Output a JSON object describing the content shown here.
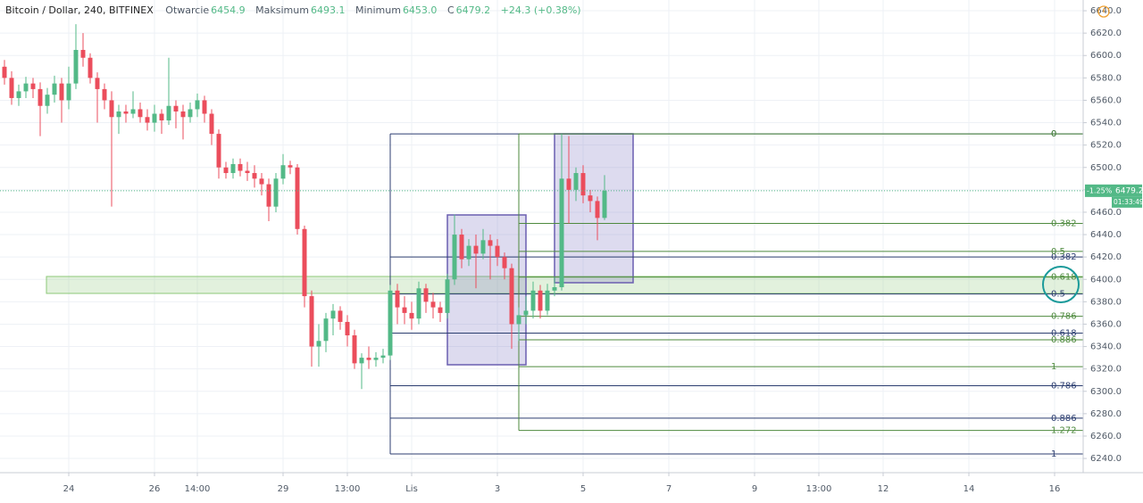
{
  "chart_data": {
    "type": "candlestick",
    "title": "Bitcoin / Dollar, 240, BITFINEX",
    "legend": {
      "open_label": "Otwarcie",
      "high_label": "Maksimum",
      "low_label": "Minimum",
      "low_value_label": "6453.0",
      "close_label": "C",
      "change": "+24.3 (+0.38%)"
    },
    "series": {
      "open": [
        6590,
        6580,
        6562,
        6568,
        6575,
        6570,
        6555,
        6565,
        6575,
        6560,
        6575,
        6605,
        6598,
        6580,
        6570,
        6560,
        6545,
        6550,
        6548,
        6552,
        6545,
        6540,
        6548,
        6542,
        6555,
        6550,
        6545,
        6552,
        6560,
        6548,
        6530,
        6500,
        6495,
        6503,
        6497,
        6495,
        6490,
        6485,
        6465,
        6490,
        6502,
        6500,
        6445,
        6385,
        6340,
        6345,
        6365,
        6372,
        6362,
        6350,
        6325,
        6330,
        6328,
        6330,
        6332,
        6390,
        6375,
        6370,
        6365,
        6392,
        6380,
        6375,
        6370,
        6400,
        6440,
        6418,
        6430,
        6423,
        6435,
        6430,
        6420,
        6410,
        6360,
        6368,
        6372,
        6390,
        6372,
        6390,
        6393,
        6490,
        6480,
        6495,
        6475,
        6470,
        6454.9
      ],
      "high": [
        6596,
        6586,
        6574,
        6581,
        6580,
        6576,
        6571,
        6582,
        6580,
        6590,
        6628,
        6620,
        6602,
        6585,
        6575,
        6568,
        6556,
        6556,
        6568,
        6558,
        6552,
        6556,
        6552,
        6598,
        6560,
        6556,
        6558,
        6566,
        6564,
        6552,
        6534,
        6505,
        6508,
        6508,
        6505,
        6502,
        6495,
        6490,
        6495,
        6512,
        6506,
        6503,
        6448,
        6390,
        6360,
        6370,
        6378,
        6376,
        6368,
        6355,
        6334,
        6340,
        6335,
        6338,
        6395,
        6396,
        6385,
        6380,
        6398,
        6396,
        6388,
        6380,
        6405,
        6458,
        6445,
        6436,
        6440,
        6445,
        6440,
        6436,
        6424,
        6414,
        6375,
        6385,
        6398,
        6395,
        6396,
        6402,
        6530,
        6528,
        6500,
        6502,
        6480,
        6474,
        6493.1
      ],
      "low": [
        6574,
        6556,
        6555,
        6562,
        6562,
        6528,
        6548,
        6558,
        6540,
        6552,
        6570,
        6590,
        6575,
        6540,
        6552,
        6465,
        6530,
        6540,
        6544,
        6540,
        6533,
        6532,
        6530,
        6538,
        6535,
        6525,
        6540,
        6545,
        6540,
        6520,
        6490,
        6490,
        6490,
        6492,
        6488,
        6482,
        6475,
        6452,
        6460,
        6485,
        6494,
        6440,
        6375,
        6322,
        6322,
        6335,
        6350,
        6355,
        6340,
        6320,
        6302,
        6320,
        6322,
        6325,
        6328,
        6360,
        6360,
        6355,
        6360,
        6370,
        6365,
        6362,
        6365,
        6395,
        6410,
        6412,
        6392,
        6418,
        6400,
        6412,
        6400,
        6338,
        6345,
        6360,
        6365,
        6365,
        6368,
        6385,
        6390,
        6450,
        6470,
        6468,
        6460,
        6435,
        6453.0
      ],
      "close": [
        6580,
        6562,
        6568,
        6575,
        6570,
        6555,
        6565,
        6575,
        6560,
        6575,
        6605,
        6598,
        6580,
        6570,
        6560,
        6545,
        6550,
        6548,
        6552,
        6545,
        6540,
        6548,
        6542,
        6555,
        6550,
        6545,
        6552,
        6560,
        6548,
        6530,
        6500,
        6495,
        6503,
        6497,
        6495,
        6490,
        6485,
        6465,
        6490,
        6502,
        6500,
        6445,
        6385,
        6340,
        6345,
        6365,
        6372,
        6362,
        6350,
        6325,
        6330,
        6328,
        6330,
        6332,
        6390,
        6375,
        6370,
        6365,
        6392,
        6380,
        6375,
        6370,
        6400,
        6440,
        6418,
        6430,
        6423,
        6435,
        6430,
        6420,
        6410,
        6360,
        6368,
        6372,
        6390,
        6372,
        6390,
        6393,
        6490,
        6480,
        6495,
        6475,
        6470,
        6454.9,
        6479.2
      ]
    },
    "up_color": "#53b987",
    "down_color": "#eb4d5c",
    "xlim": [
      -0.625,
      151
    ],
    "xticks": [
      {
        "value": 9,
        "label": "24"
      },
      {
        "value": 21,
        "label": "26"
      },
      {
        "value": 27,
        "label": "14:00"
      },
      {
        "value": 39,
        "label": "29"
      },
      {
        "value": 48,
        "label": "13:00"
      },
      {
        "value": 57,
        "label": "Lis"
      },
      {
        "value": 69,
        "label": "3"
      },
      {
        "value": 81,
        "label": "5"
      },
      {
        "value": 93,
        "label": "7"
      },
      {
        "value": 105,
        "label": "9"
      },
      {
        "value": 114,
        "label": "13:00"
      },
      {
        "value": 123,
        "label": "12"
      },
      {
        "value": 135,
        "label": "14"
      },
      {
        "value": 147,
        "label": "16"
      }
    ],
    "ylim": [
      6227.3,
      6649.6
    ],
    "yticks": [
      {
        "value": 6640,
        "label": "6640.0"
      },
      {
        "value": 6620,
        "label": "6620.0"
      },
      {
        "value": 6600,
        "label": "6600.0"
      },
      {
        "value": 6580,
        "label": "6580.0"
      },
      {
        "value": 6560,
        "label": "6560.0"
      },
      {
        "value": 6540,
        "label": "6540.0"
      },
      {
        "value": 6520,
        "label": "6520.0"
      },
      {
        "value": 6500,
        "label": "6500.0"
      },
      {
        "value": 6480,
        "label": "6480.0"
      },
      {
        "value": 6460,
        "label": "6460.0"
      },
      {
        "value": 6440,
        "label": "6440.0"
      },
      {
        "value": 6420,
        "label": "6420.0"
      },
      {
        "value": 6400,
        "label": "6400.0"
      },
      {
        "value": 6380,
        "label": "6380.0"
      },
      {
        "value": 6360,
        "label": "6360.0"
      },
      {
        "value": 6340,
        "label": "6340.0"
      },
      {
        "value": 6320,
        "label": "6320.0"
      },
      {
        "value": 6300,
        "label": "6300.0"
      },
      {
        "value": 6280,
        "label": "6280.0"
      },
      {
        "value": 6260,
        "label": "6260.0"
      },
      {
        "value": 6240,
        "label": "6240.0"
      }
    ],
    "grid": true,
    "last_price": {
      "change_pct": "-1.25%",
      "countdown": "01:33:49"
    },
    "fibonacci": [
      {
        "color": "#2c3e70",
        "from": 54,
        "levels": [
          {
            "label": "0",
            "price": 6530
          },
          {
            "label": "0.382",
            "price": 6420
          },
          {
            "label": "0.5",
            "price": 6387
          },
          {
            "label": "0.618",
            "price": 6352
          },
          {
            "label": "0.786",
            "price": 6305
          },
          {
            "label": "0.886",
            "price": 6276
          },
          {
            "label": "1",
            "price": 6244
          }
        ]
      },
      {
        "color": "#4e8a3e",
        "from": 72,
        "levels": [
          {
            "label": "0",
            "price": 6530
          },
          {
            "label": "0.382",
            "price": 6450
          },
          {
            "label": "0.5",
            "price": 6425
          },
          {
            "label": "0.618",
            "price": 6402
          },
          {
            "label": "0.786",
            "price": 6367
          },
          {
            "label": "0.886",
            "price": 6346
          },
          {
            "label": "1",
            "price": 6322
          },
          {
            "label": "1.272",
            "price": 6265
          }
        ]
      }
    ]
  }
}
